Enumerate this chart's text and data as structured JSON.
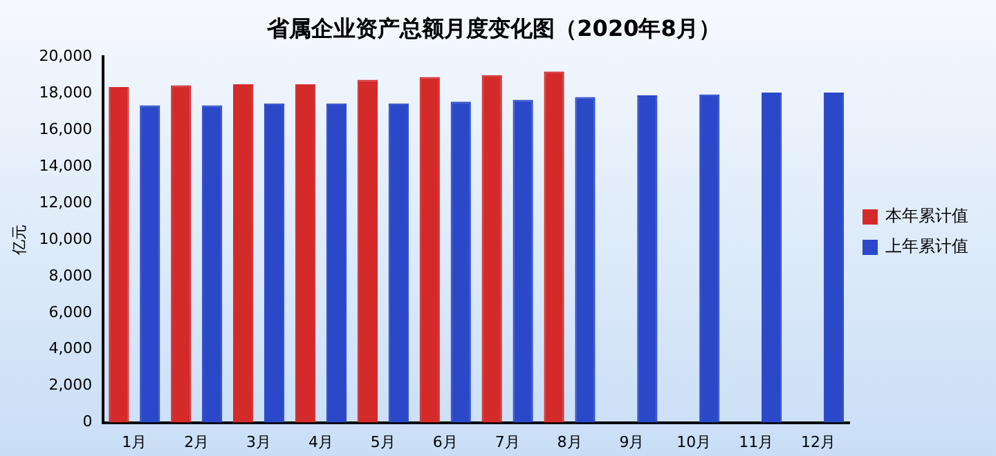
{
  "chart_data": {
    "type": "bar",
    "title": "省属企业资产总额月度变化图（2020年8月）",
    "ylabel": "亿元",
    "categories": [
      "1月",
      "2月",
      "3月",
      "4月",
      "5月",
      "6月",
      "7月",
      "8月",
      "9月",
      "10月",
      "11月",
      "12月"
    ],
    "series": [
      {
        "name": "本年累计值",
        "color": "#d42a2a",
        "values": [
          18350,
          18450,
          18500,
          18500,
          18750,
          18900,
          19000,
          19200,
          null,
          null,
          null,
          null
        ]
      },
      {
        "name": "上年累计值",
        "color": "#2a48c8",
        "values": [
          17350,
          17350,
          17450,
          17450,
          17450,
          17550,
          17650,
          17800,
          17900,
          17950,
          18050,
          18050
        ]
      }
    ],
    "ylim": [
      0,
      20000
    ],
    "yticks": [
      0,
      {
        "value": 2000,
        "label": "2,000"
      },
      {
        "value": 4000,
        "label": "4,000"
      },
      {
        "value": 6000,
        "label": "6,000"
      },
      {
        "value": 8000,
        "label": "8,000"
      },
      {
        "value": 10000,
        "label": "10,000"
      },
      {
        "value": 12000,
        "label": "12,000"
      },
      {
        "value": 14000,
        "label": "14,000"
      },
      {
        "value": 16000,
        "label": "16,000"
      },
      {
        "value": 18000,
        "label": "18,000"
      },
      {
        "value": 20000,
        "label": "20,000"
      }
    ],
    "grid": false,
    "legend": "right"
  }
}
